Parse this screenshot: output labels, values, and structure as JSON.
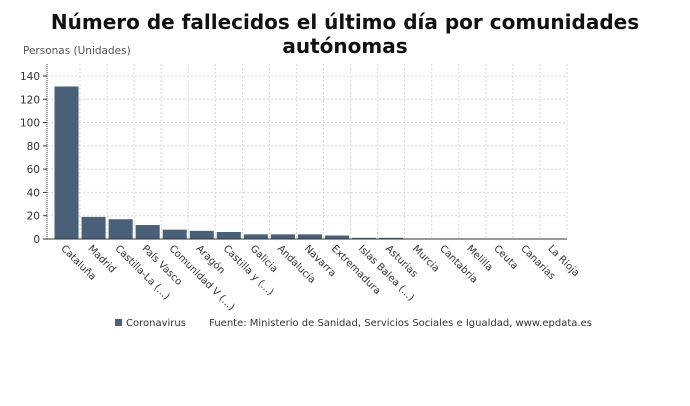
{
  "chart_data": {
    "type": "bar",
    "title": "Número de fallecidos el último día por comunidades autónomas",
    "ylabel": "Personas (Unidades)",
    "xlabel": "",
    "categories": [
      "Cataluña",
      "Madrid",
      "Castilla-La (...)",
      "País Vasco",
      "Comunidad V (...)",
      "Aragón",
      "Castilla y (...)",
      "Galicia",
      "Andalucía",
      "Navarra",
      "Extremadura",
      "Islas Balea (...)",
      "Asturias",
      "Murcia",
      "Cantabria",
      "Melilla",
      "Ceuta",
      "Canarias",
      "La Rioja"
    ],
    "series": [
      {
        "name": "Coronavirus",
        "values": [
          131,
          19,
          17,
          12,
          8,
          7,
          6,
          4,
          4,
          4,
          3,
          1,
          1,
          0,
          0,
          0,
          0,
          0,
          0
        ],
        "color": "#4a6078"
      }
    ],
    "ylim": [
      0,
      150
    ],
    "yticks": [
      0,
      20,
      40,
      60,
      80,
      100,
      120,
      140
    ],
    "grid": true,
    "legend_placement": "bottom"
  },
  "source": "Fuente: Ministerio de Sanidad, Servicios Sociales e Igualdad, www.epdata.es"
}
